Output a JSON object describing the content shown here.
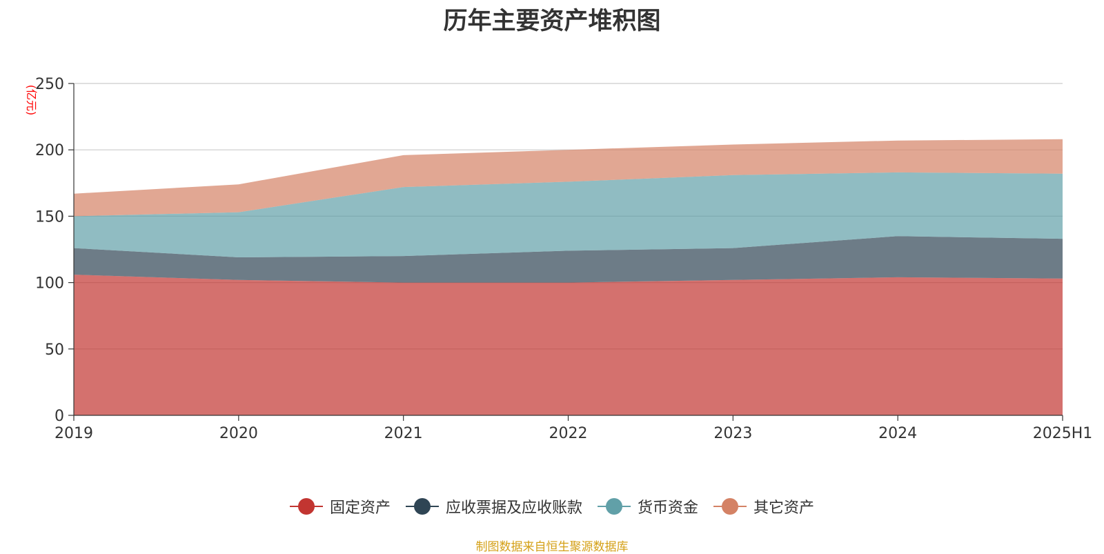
{
  "chart_data": {
    "type": "area",
    "stacked": true,
    "title": "历年主要资产堆积图",
    "unit_label": "(亿元)",
    "x": [
      "2019",
      "2020",
      "2021",
      "2022",
      "2023",
      "2024",
      "2025H1"
    ],
    "ylim": [
      0,
      250
    ],
    "yticks": [
      "0",
      "50",
      "100",
      "150",
      "200",
      "250"
    ],
    "grid": true,
    "legend_position": "bottom",
    "series": [
      {
        "name": "固定资产",
        "values": [
          106,
          102,
          100,
          100,
          102,
          104,
          103
        ],
        "color": "#c23531"
      },
      {
        "name": "应收票据及应收账款",
        "values": [
          20,
          17,
          20,
          24,
          24,
          31,
          30
        ],
        "color": "#2f4554"
      },
      {
        "name": "货币资金",
        "values": [
          24,
          34,
          52,
          52,
          55,
          48,
          49
        ],
        "color": "#61a0a8"
      },
      {
        "name": "其它资产",
        "values": [
          17,
          21,
          24,
          24,
          23,
          24,
          26
        ],
        "color": "#d48265"
      }
    ]
  },
  "footer": {
    "source": "制图数据来自恒生聚源数据库"
  },
  "colors": {
    "axis": "#333333",
    "grid": "#cccccc",
    "unit_label": "#ff0000",
    "source": "#d4a017"
  }
}
